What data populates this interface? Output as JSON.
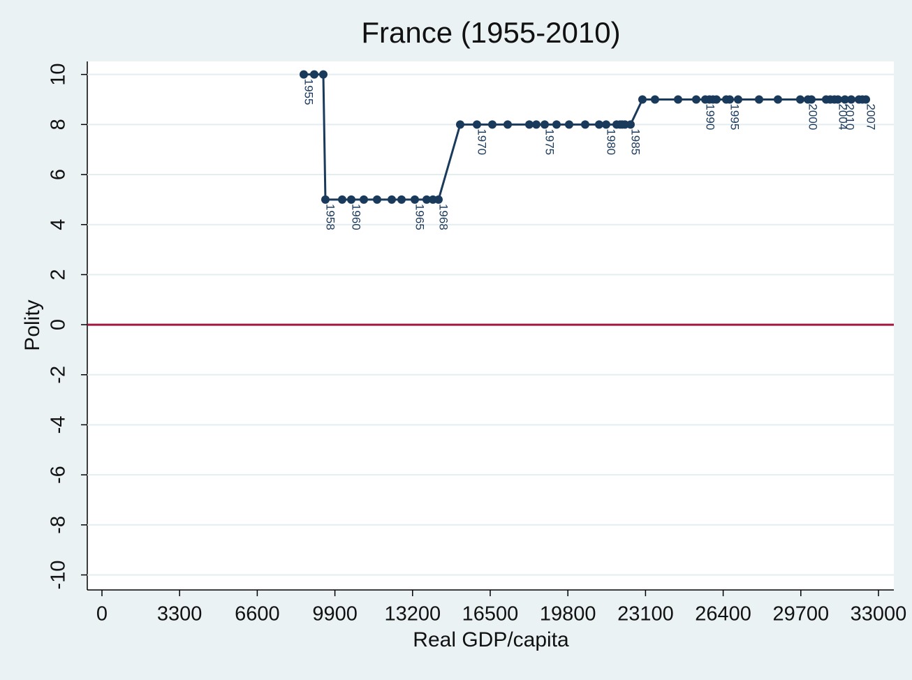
{
  "chart_data": {
    "type": "connected-scatter",
    "title": "France (1955-2010)",
    "x_label": "Real GDP/capita",
    "y_label": "Polity",
    "xlim": [
      -623,
      33653
    ],
    "ylim": [
      -10.6,
      10.52
    ],
    "xticks": [
      0,
      3300,
      6600,
      9900,
      13200,
      16500,
      19800,
      23100,
      26400,
      29700,
      33000
    ],
    "yticks": [
      -10,
      -8,
      -6,
      -4,
      -2,
      0,
      2,
      4,
      6,
      8,
      10
    ],
    "grid": true,
    "reference_line": {
      "y": 0,
      "color": "#a3163d"
    },
    "series": [
      {
        "color": "#1a3a5c",
        "x": [
          8576,
          9021,
          9407,
          9496,
          10209,
          10594,
          11129,
          11692,
          12316,
          12731,
          13295,
          13799,
          14066,
          14304,
          15224,
          15936,
          16589,
          17242,
          18162,
          18458,
          18815,
          19319,
          19853,
          20536,
          21129,
          21426,
          21871,
          22020,
          22109,
          22227,
          22465,
          22969,
          23503,
          24483,
          25254,
          25640,
          25818,
          25967,
          26115,
          26530,
          26679,
          27035,
          27925,
          28726,
          29676,
          30002,
          30151,
          30774,
          30952,
          31279,
          31842,
          32169,
          32466,
          32317,
          31130,
          31575
        ],
        "values": [
          10,
          10,
          10,
          5,
          5,
          5,
          5,
          5,
          5,
          5,
          5,
          5,
          5,
          5,
          8,
          8,
          8,
          8,
          8,
          8,
          8,
          8,
          8,
          8,
          8,
          8,
          8,
          8,
          8,
          8,
          8,
          9,
          9,
          9,
          9,
          9,
          9,
          9,
          9,
          9,
          9,
          9,
          9,
          9,
          9,
          9,
          9,
          9,
          9,
          9,
          9,
          9,
          9,
          9,
          9,
          9
        ],
        "point_labels": [
          "1955",
          null,
          null,
          "1958",
          null,
          "1960",
          null,
          null,
          null,
          null,
          "1965",
          null,
          null,
          "1968",
          null,
          "1970",
          null,
          null,
          null,
          null,
          "1975",
          null,
          null,
          null,
          null,
          "1980",
          null,
          null,
          null,
          null,
          "1985",
          null,
          null,
          null,
          null,
          "1990",
          null,
          null,
          null,
          null,
          "1995",
          null,
          null,
          null,
          null,
          "2000",
          null,
          null,
          null,
          "2004",
          null,
          null,
          "2007",
          null,
          null,
          "2010"
        ]
      }
    ]
  }
}
